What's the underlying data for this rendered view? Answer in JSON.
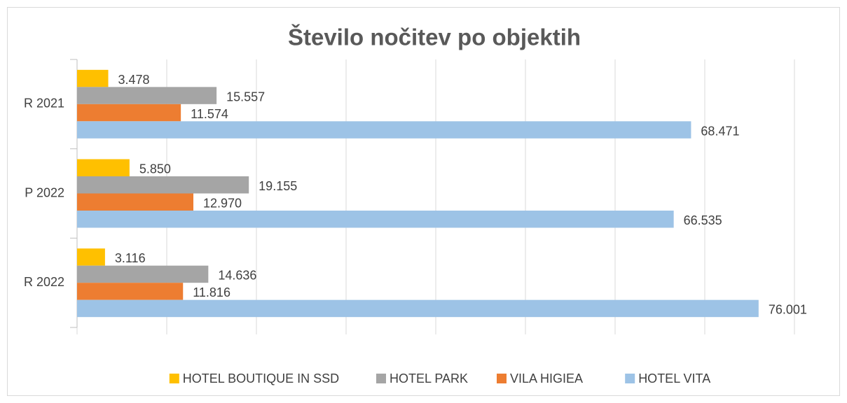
{
  "chart_data": {
    "type": "hbar",
    "title": "Število nočitev po objektih",
    "categories": [
      "R 2021",
      "P 2022",
      "R 2022"
    ],
    "series": [
      {
        "name": "HOTEL BOUTIQUE IN SSD",
        "color": "#ffc000",
        "values": [
          3478,
          5850,
          3116
        ],
        "value_labels": [
          "3.478",
          "5.850",
          "3.116"
        ]
      },
      {
        "name": "HOTEL PARK",
        "color": "#a5a5a5",
        "values": [
          15557,
          19155,
          14636
        ],
        "value_labels": [
          "15.557",
          "19.155",
          "14.636"
        ]
      },
      {
        "name": "VILA HIGIEA",
        "color": "#ed7d31",
        "values": [
          11574,
          12970,
          11816
        ],
        "value_labels": [
          "11.574",
          "12.970",
          "11.816"
        ]
      },
      {
        "name": "HOTEL VITA",
        "color": "#9dc3e6",
        "values": [
          68471,
          66535,
          76001
        ],
        "value_labels": [
          "68.471",
          "66.535",
          "76.001"
        ]
      }
    ],
    "xlim": [
      0,
      80000
    ],
    "xticks": [
      0,
      10000,
      20000,
      30000,
      40000,
      50000,
      60000,
      70000,
      80000
    ],
    "grid": true,
    "legend": "bottom"
  }
}
